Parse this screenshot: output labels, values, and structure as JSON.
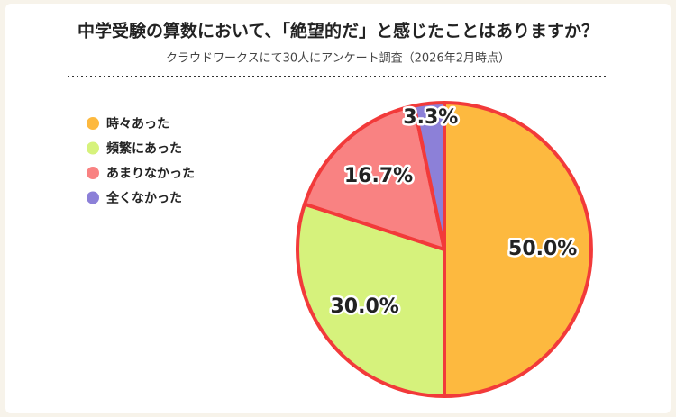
{
  "chart_data": {
    "type": "pie",
    "title": "中学受験の算数において、「絶望的だ」と感じたことはありますか？",
    "subtitle": "クラウドワークスにて30人にアンケート調査（2026年2月時点）",
    "categories": [
      "時々あった",
      "頻繁にあった",
      "あまりなかった",
      "全くなかった"
    ],
    "values": [
      50,
      30,
      16.7,
      3.3
    ],
    "value_labels": [
      "50.0%",
      "30.0%",
      "16.7%",
      "3.3%"
    ],
    "colors": [
      "#fdb93f",
      "#d6f27c",
      "#f98282",
      "#8c80d8"
    ],
    "legend": "left"
  }
}
